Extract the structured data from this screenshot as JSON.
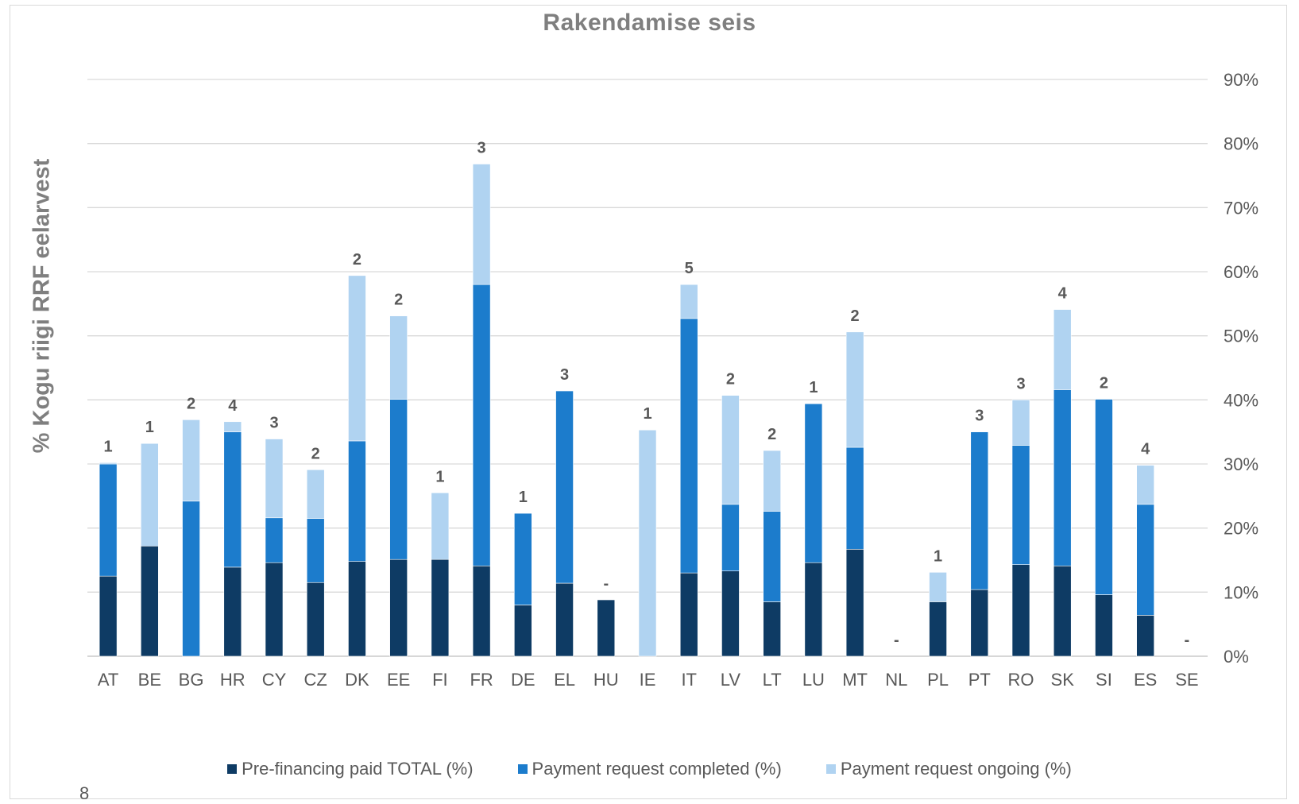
{
  "chart_data": {
    "type": "bar",
    "stacked": true,
    "title": "Rakendamise seis",
    "ylabel": "% Kogu   riigi RRF eelarvest",
    "xlabel": "",
    "ylim": [
      0,
      90
    ],
    "y_axis_side": "right",
    "y_ticks": [
      "0%",
      "10%",
      "20%",
      "30%",
      "40%",
      "50%",
      "60%",
      "70%",
      "80%",
      "90%"
    ],
    "grid": true,
    "legend_position": "bottom",
    "categories": [
      "AT",
      "BE",
      "BG",
      "HR",
      "CY",
      "CZ",
      "DK",
      "EE",
      "FI",
      "FR",
      "DE",
      "EL",
      "HU",
      "IE",
      "IT",
      "LV",
      "LT",
      "LU",
      "MT",
      "NL",
      "PL",
      "PT",
      "RO",
      "SK",
      "SI",
      "ES",
      "SE"
    ],
    "series": [
      {
        "name": "Pre-financing paid TOTAL (%)",
        "color": "#0e3b64",
        "values": [
          12.5,
          17.2,
          0,
          13.9,
          14.6,
          11.5,
          14.8,
          15.1,
          15.1,
          14.1,
          8.0,
          11.4,
          8.8,
          0,
          13.0,
          13.3,
          8.5,
          14.6,
          16.7,
          0,
          8.5,
          10.4,
          14.3,
          14.1,
          9.6,
          6.4,
          0
        ]
      },
      {
        "name": "Payment request completed (%)",
        "color": "#1c7ccc",
        "values": [
          17.5,
          0,
          24.2,
          21.1,
          7.0,
          10.0,
          18.8,
          25.0,
          0,
          43.9,
          14.3,
          30.0,
          0,
          0,
          39.7,
          10.4,
          14.1,
          24.8,
          15.9,
          0,
          0,
          24.6,
          18.6,
          27.5,
          30.5,
          17.3,
          0
        ]
      },
      {
        "name": "Payment request ongoing (%)",
        "color": "#b0d3f1",
        "values": [
          0.2,
          16.0,
          12.7,
          1.6,
          12.3,
          7.6,
          25.8,
          13.0,
          10.4,
          18.8,
          0,
          0,
          0,
          35.3,
          5.3,
          17.0,
          9.5,
          0,
          18.0,
          0,
          4.6,
          0,
          7.1,
          12.5,
          0,
          6.1,
          0
        ]
      }
    ],
    "bar_labels": [
      "1",
      "1",
      "2",
      "4",
      "3",
      "2",
      "2",
      "2",
      "1",
      "3",
      "1",
      "3",
      "-",
      "1",
      "5",
      "2",
      "2",
      "1",
      "2",
      "-",
      "1",
      "3",
      "3",
      "4",
      "2",
      "4",
      "-"
    ]
  },
  "page_number": "8"
}
